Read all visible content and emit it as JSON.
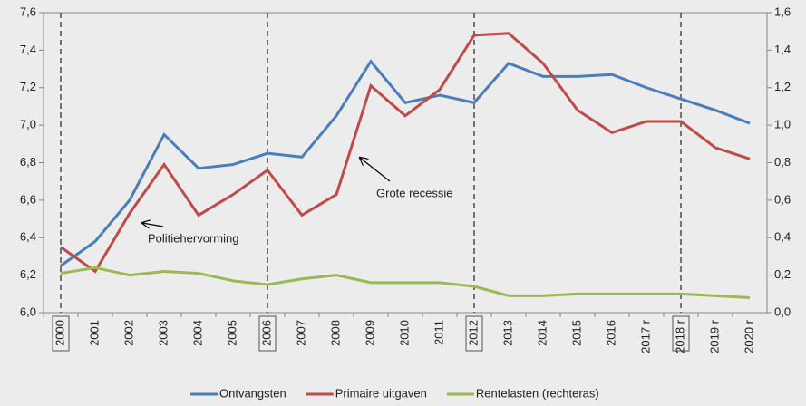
{
  "chart_data": {
    "type": "line",
    "categories": [
      "2000",
      "2001",
      "2002",
      "2003",
      "2004",
      "2005",
      "2006",
      "2007",
      "2008",
      "2009",
      "2010",
      "2011",
      "2012",
      "2013",
      "2014",
      "2015",
      "2016",
      "2017 r",
      "2018 r",
      "2019 r",
      "2020 r"
    ],
    "series": [
      {
        "name": "Ontvangsten",
        "color": "#4a7ebb",
        "values": [
          6.25,
          6.38,
          6.6,
          6.95,
          6.77,
          6.79,
          6.85,
          6.83,
          7.05,
          7.34,
          7.12,
          7.16,
          7.12,
          7.33,
          7.26,
          7.26,
          7.27,
          7.2,
          7.14,
          7.08,
          7.01
        ]
      },
      {
        "name": "Primaire uitgaven",
        "color": "#be4b48",
        "values": [
          6.35,
          6.22,
          6.53,
          6.79,
          6.52,
          6.63,
          6.76,
          6.52,
          6.63,
          7.21,
          7.05,
          7.19,
          7.48,
          7.49,
          7.33,
          7.08,
          6.96,
          7.02,
          7.02,
          6.88,
          6.82
        ]
      },
      {
        "name": "Rentelasten (rechteras)",
        "color": "#98b954",
        "axis": "y2",
        "values": [
          0.21,
          0.24,
          0.2,
          0.22,
          0.21,
          0.17,
          0.15,
          0.18,
          0.2,
          0.16,
          0.16,
          0.16,
          0.14,
          0.09,
          0.09,
          0.1,
          0.1,
          0.1,
          0.1,
          0.09,
          0.08
        ]
      }
    ],
    "ylim": [
      6.0,
      7.6
    ],
    "yticks": [
      {
        "value": 6.0,
        "label": "6,0"
      },
      {
        "value": 6.2,
        "label": "6,2"
      },
      {
        "value": 6.4,
        "label": "6,4"
      },
      {
        "value": 6.6,
        "label": "6,6"
      },
      {
        "value": 6.8,
        "label": "6,8"
      },
      {
        "value": 7.0,
        "label": "7,0"
      },
      {
        "value": 7.2,
        "label": "7,2"
      },
      {
        "value": 7.4,
        "label": "7,4"
      },
      {
        "value": 7.6,
        "label": "7,6"
      }
    ],
    "y2lim": [
      0.0,
      1.6
    ],
    "y2ticks": [
      {
        "value": 0.0,
        "label": "0,0"
      },
      {
        "value": 0.2,
        "label": "0,2"
      },
      {
        "value": 0.4,
        "label": "0,4"
      },
      {
        "value": 0.6,
        "label": "0,6"
      },
      {
        "value": 0.8,
        "label": "0,8"
      },
      {
        "value": 1.0,
        "label": "1,0"
      },
      {
        "value": 1.2,
        "label": "1,2"
      },
      {
        "value": 1.4,
        "label": "1,4"
      },
      {
        "value": 1.6,
        "label": "1,6"
      }
    ],
    "highlight_indices": [
      0,
      6,
      12,
      18
    ],
    "annotations": [
      "Grote recessie",
      "Politiehervorming"
    ],
    "legend": "bottom"
  }
}
